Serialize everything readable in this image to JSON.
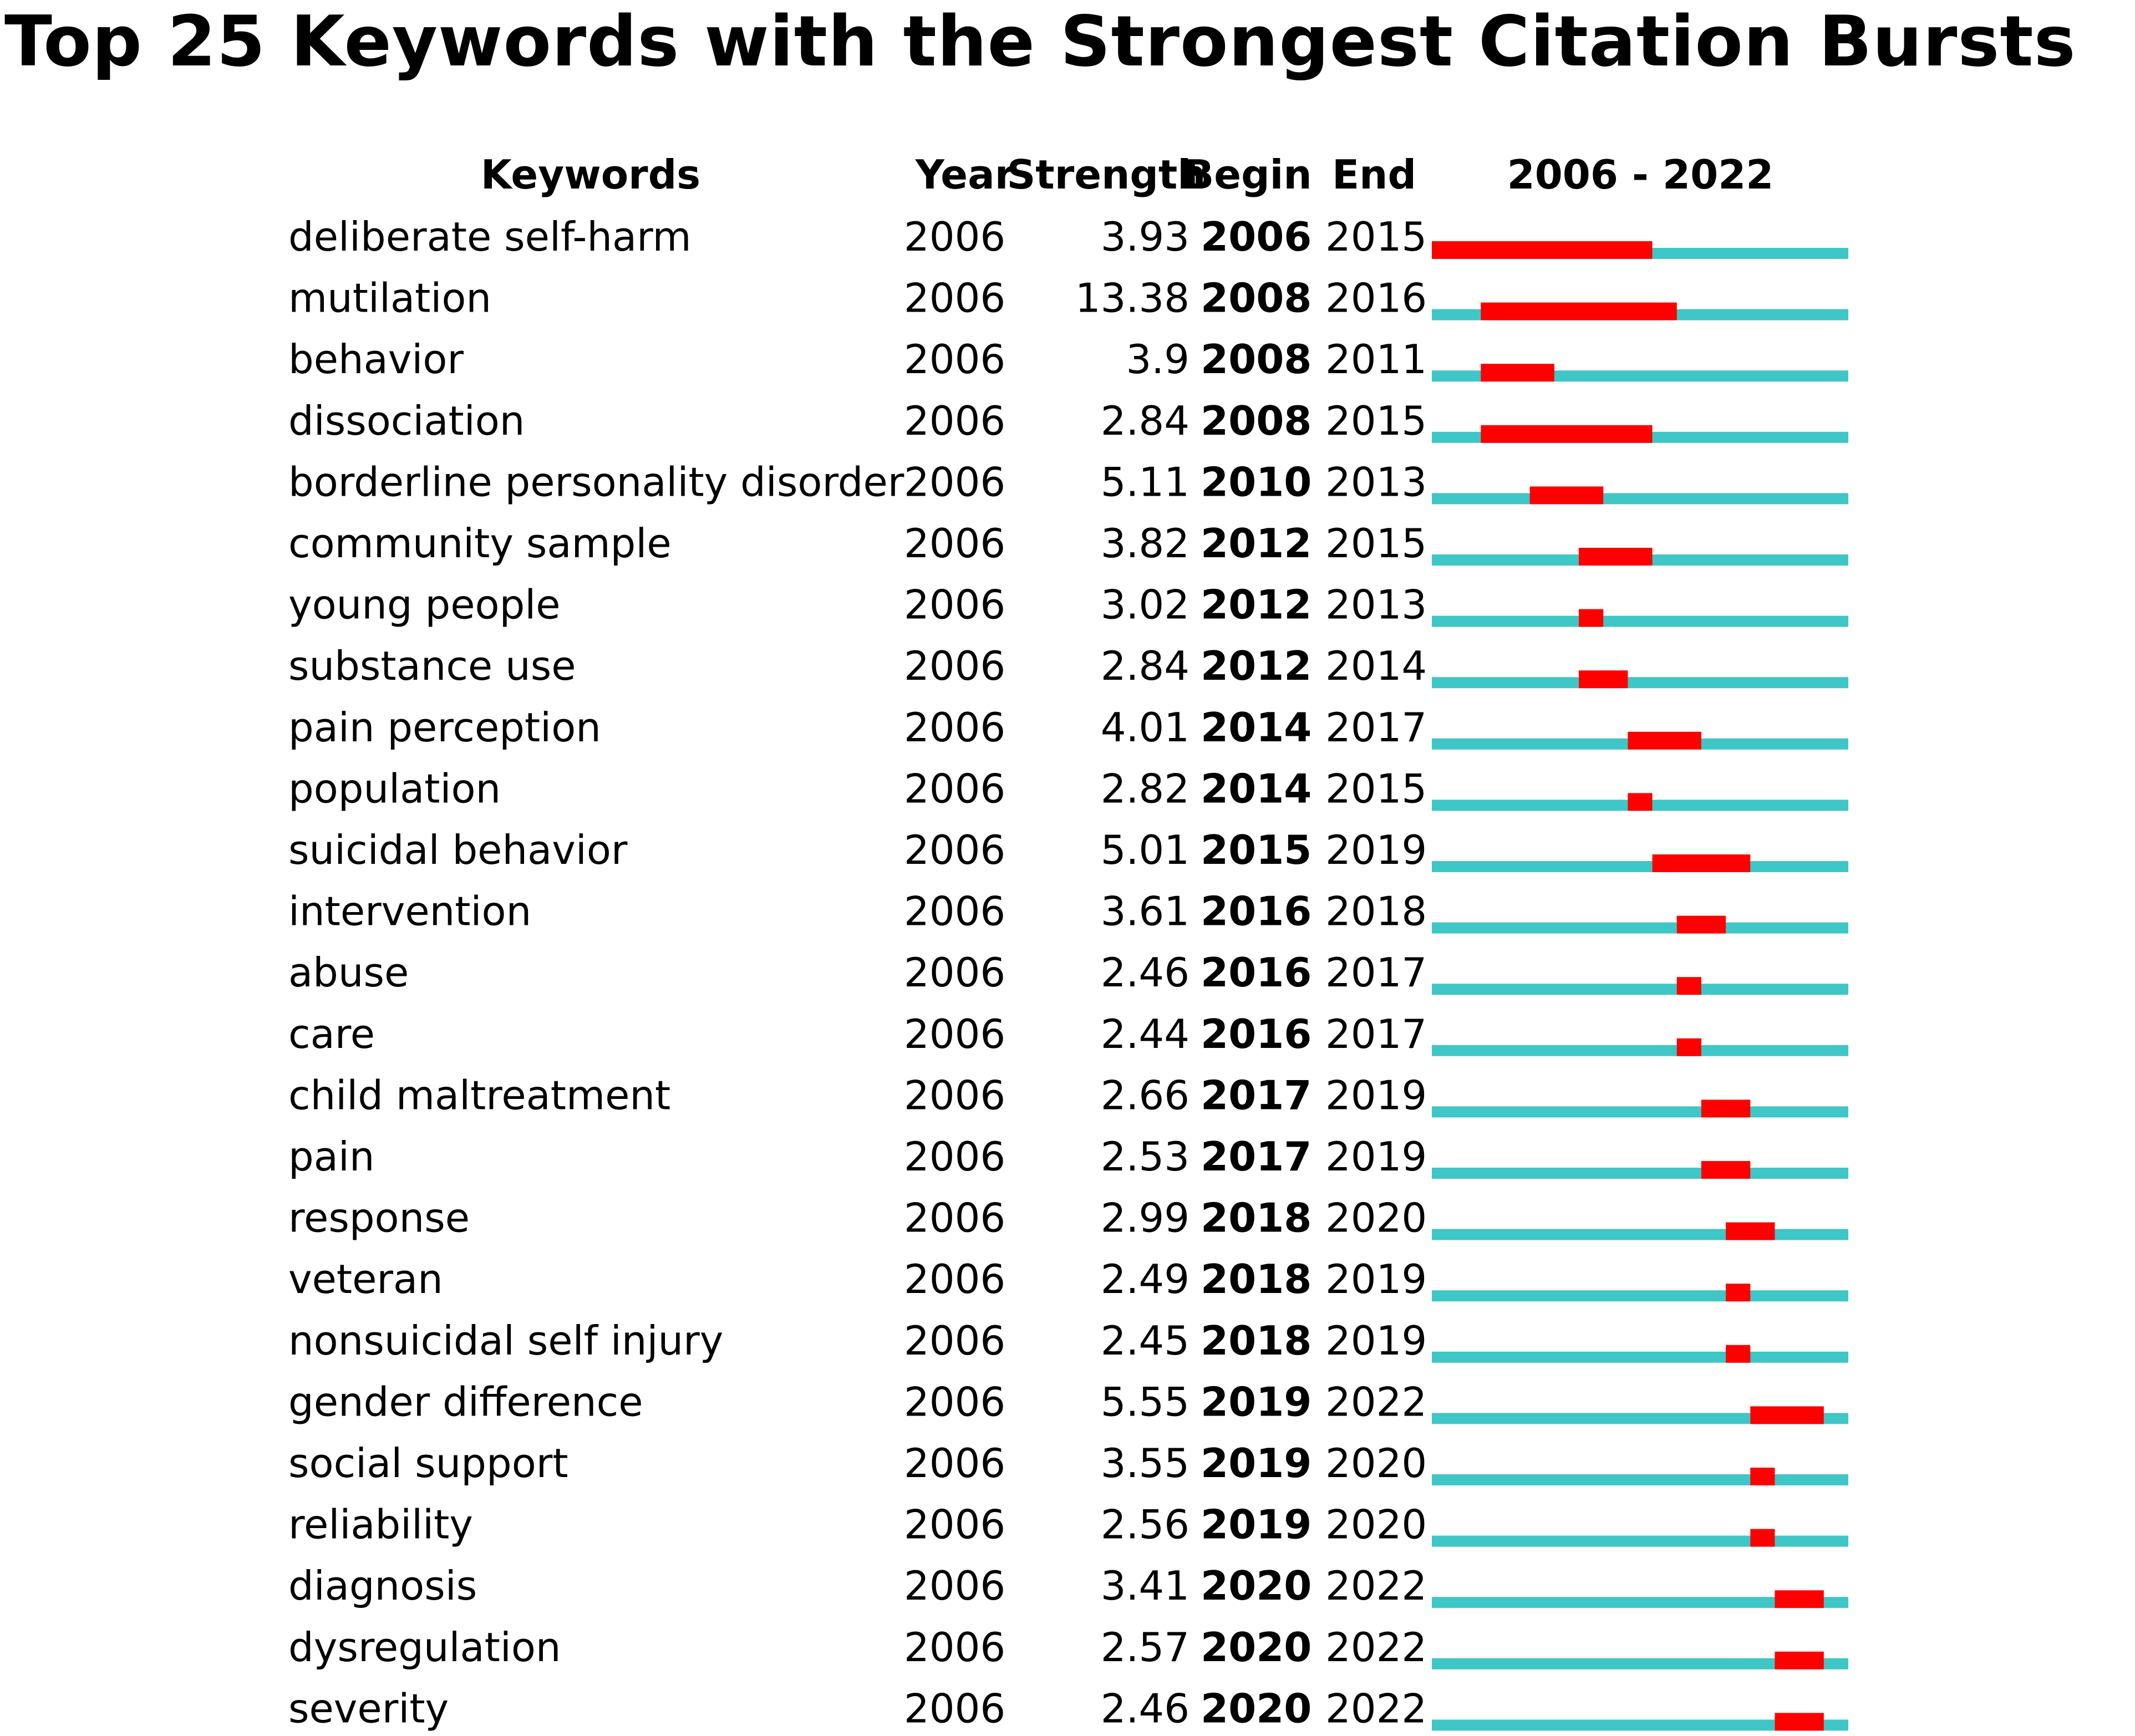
{
  "chart_data": {
    "type": "table",
    "title": "Top 25 Keywords with the Strongest Citation Bursts",
    "columns": [
      "Keywords",
      "Year",
      "Strength",
      "Begin",
      "End",
      "2006 - 2022"
    ],
    "range": [
      2006,
      2022
    ],
    "colors": {
      "burst": "#ff0000",
      "baseline": "#3fc6c6"
    },
    "rows": [
      {
        "keyword": "deliberate self-harm",
        "year": "2006",
        "strength": "3.93",
        "begin": "2006",
        "end": "2015"
      },
      {
        "keyword": "mutilation",
        "year": "2006",
        "strength": "13.38",
        "begin": "2008",
        "end": "2016"
      },
      {
        "keyword": "behavior",
        "year": "2006",
        "strength": "3.9",
        "begin": "2008",
        "end": "2011"
      },
      {
        "keyword": "dissociation",
        "year": "2006",
        "strength": "2.84",
        "begin": "2008",
        "end": "2015"
      },
      {
        "keyword": "borderline personality disorder",
        "year": "2006",
        "strength": "5.11",
        "begin": "2010",
        "end": "2013"
      },
      {
        "keyword": "community sample",
        "year": "2006",
        "strength": "3.82",
        "begin": "2012",
        "end": "2015"
      },
      {
        "keyword": "young people",
        "year": "2006",
        "strength": "3.02",
        "begin": "2012",
        "end": "2013"
      },
      {
        "keyword": "substance use",
        "year": "2006",
        "strength": "2.84",
        "begin": "2012",
        "end": "2014"
      },
      {
        "keyword": "pain perception",
        "year": "2006",
        "strength": "4.01",
        "begin": "2014",
        "end": "2017"
      },
      {
        "keyword": "population",
        "year": "2006",
        "strength": "2.82",
        "begin": "2014",
        "end": "2015"
      },
      {
        "keyword": "suicidal behavior",
        "year": "2006",
        "strength": "5.01",
        "begin": "2015",
        "end": "2019"
      },
      {
        "keyword": "intervention",
        "year": "2006",
        "strength": "3.61",
        "begin": "2016",
        "end": "2018"
      },
      {
        "keyword": "abuse",
        "year": "2006",
        "strength": "2.46",
        "begin": "2016",
        "end": "2017"
      },
      {
        "keyword": "care",
        "year": "2006",
        "strength": "2.44",
        "begin": "2016",
        "end": "2017"
      },
      {
        "keyword": "child maltreatment",
        "year": "2006",
        "strength": "2.66",
        "begin": "2017",
        "end": "2019"
      },
      {
        "keyword": "pain",
        "year": "2006",
        "strength": "2.53",
        "begin": "2017",
        "end": "2019"
      },
      {
        "keyword": "response",
        "year": "2006",
        "strength": "2.99",
        "begin": "2018",
        "end": "2020"
      },
      {
        "keyword": "veteran",
        "year": "2006",
        "strength": "2.49",
        "begin": "2018",
        "end": "2019"
      },
      {
        "keyword": "nonsuicidal self injury",
        "year": "2006",
        "strength": "2.45",
        "begin": "2018",
        "end": "2019"
      },
      {
        "keyword": "gender difference",
        "year": "2006",
        "strength": "5.55",
        "begin": "2019",
        "end": "2022"
      },
      {
        "keyword": "social support",
        "year": "2006",
        "strength": "3.55",
        "begin": "2019",
        "end": "2020"
      },
      {
        "keyword": "reliability",
        "year": "2006",
        "strength": "2.56",
        "begin": "2019",
        "end": "2020"
      },
      {
        "keyword": "diagnosis",
        "year": "2006",
        "strength": "3.41",
        "begin": "2020",
        "end": "2022"
      },
      {
        "keyword": "dysregulation",
        "year": "2006",
        "strength": "2.57",
        "begin": "2020",
        "end": "2022"
      },
      {
        "keyword": "severity",
        "year": "2006",
        "strength": "2.46",
        "begin": "2020",
        "end": "2022"
      }
    ]
  }
}
